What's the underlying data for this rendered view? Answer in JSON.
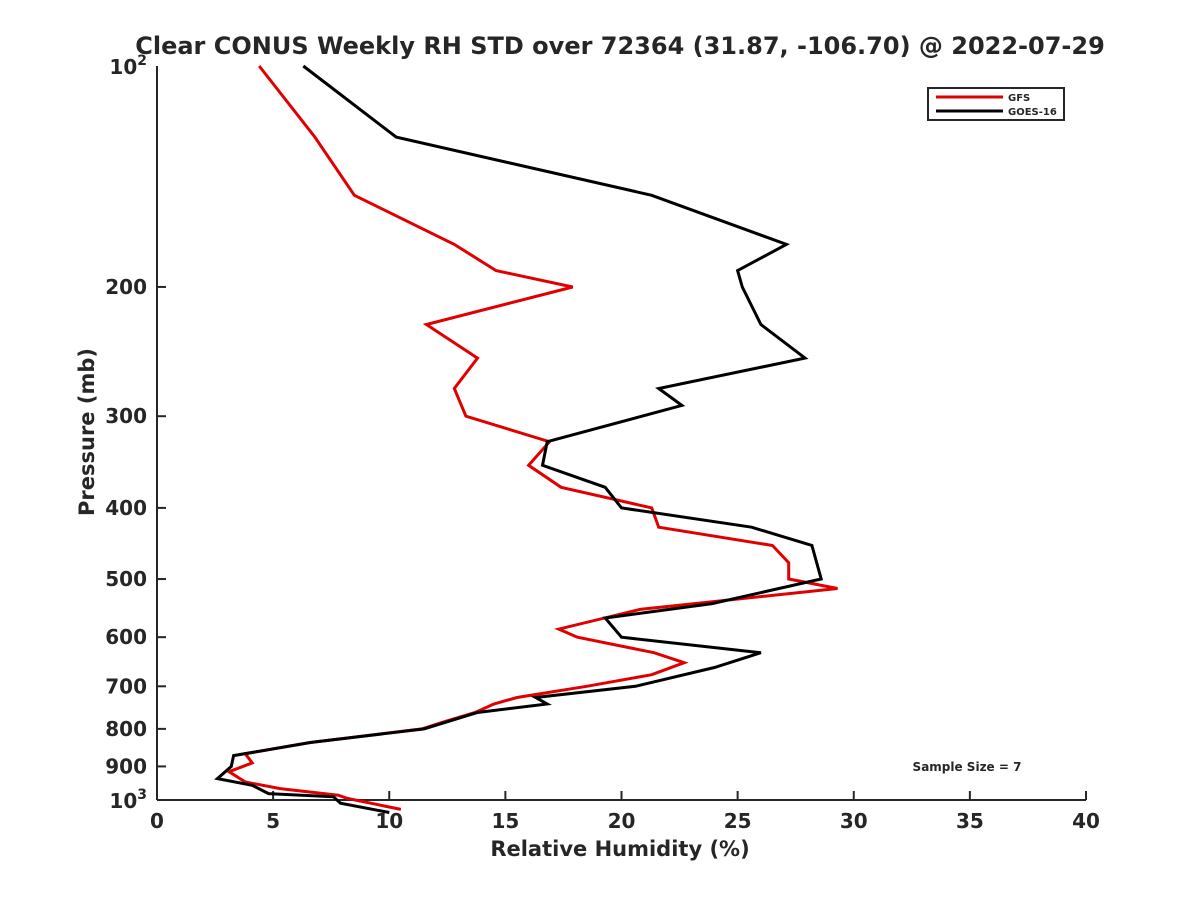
{
  "chart_data": {
    "type": "line",
    "title": "Clear CONUS Weekly RH STD over 72364 (31.87, -106.70) @ 2022-07-29",
    "xlabel": "Relative Humidity (%)",
    "ylabel": "Pressure (mb)",
    "xlim": [
      0,
      40
    ],
    "ylim": [
      100,
      1000
    ],
    "y_scale": "log",
    "y_reversed": true,
    "x_ticks": [
      0,
      5,
      10,
      15,
      20,
      25,
      30,
      35,
      40
    ],
    "x_tick_labels": [
      "0",
      "5",
      "10",
      "15",
      "20",
      "25",
      "30",
      "35",
      "40"
    ],
    "y_ticks": [
      200,
      300,
      400,
      500,
      600,
      700,
      800,
      900
    ],
    "y_tick_labels": [
      "200",
      "300",
      "400",
      "500",
      "600",
      "700",
      "800",
      "900"
    ],
    "y_end_labels": [
      {
        "value": 100,
        "base": "10",
        "exp": "2"
      },
      {
        "value": 1000,
        "base": "10",
        "exp": "3"
      }
    ],
    "grid": false,
    "legend_position": "top-right",
    "annotation": "Sample Size = 7",
    "series": [
      {
        "name": "GFS",
        "color": "#e00000",
        "points": [
          [
            4.4,
            100
          ],
          [
            6.8,
            125
          ],
          [
            8.5,
            150
          ],
          [
            12.8,
            175
          ],
          [
            14.6,
            190
          ],
          [
            17.9,
            200
          ],
          [
            11.6,
            225
          ],
          [
            13.8,
            250
          ],
          [
            12.8,
            275
          ],
          [
            13.3,
            300
          ],
          [
            16.9,
            325
          ],
          [
            16.0,
            350
          ],
          [
            17.4,
            375
          ],
          [
            21.3,
            400
          ],
          [
            21.6,
            425
          ],
          [
            26.5,
            450
          ],
          [
            27.2,
            475
          ],
          [
            27.2,
            500
          ],
          [
            29.3,
            515
          ],
          [
            20.8,
            550
          ],
          [
            17.3,
            585
          ],
          [
            18.1,
            600
          ],
          [
            21.4,
            630
          ],
          [
            22.7,
            650
          ],
          [
            21.3,
            675
          ],
          [
            18.5,
            700
          ],
          [
            15.5,
            725
          ],
          [
            14.5,
            740
          ],
          [
            13.7,
            760
          ],
          [
            12.5,
            780
          ],
          [
            11.4,
            800
          ],
          [
            6.6,
            835
          ],
          [
            3.8,
            865
          ],
          [
            4.1,
            890
          ],
          [
            3.1,
            915
          ],
          [
            3.8,
            945
          ],
          [
            5.3,
            965
          ],
          [
            7.8,
            985
          ],
          [
            8.2,
            995
          ],
          [
            10.5,
            1030
          ]
        ]
      },
      {
        "name": "GOES-16",
        "color": "#000000",
        "points": [
          [
            6.3,
            100
          ],
          [
            10.3,
            125
          ],
          [
            21.3,
            150
          ],
          [
            27.1,
            175
          ],
          [
            25.0,
            190
          ],
          [
            25.2,
            200
          ],
          [
            26.0,
            225
          ],
          [
            27.9,
            250
          ],
          [
            21.6,
            275
          ],
          [
            22.6,
            290
          ],
          [
            16.8,
            325
          ],
          [
            16.6,
            350
          ],
          [
            19.3,
            375
          ],
          [
            20.0,
            400
          ],
          [
            25.6,
            425
          ],
          [
            28.2,
            450
          ],
          [
            28.6,
            500
          ],
          [
            23.9,
            540
          ],
          [
            19.3,
            565
          ],
          [
            20.0,
            600
          ],
          [
            26.0,
            630
          ],
          [
            24.0,
            660
          ],
          [
            20.6,
            700
          ],
          [
            16.3,
            725
          ],
          [
            16.8,
            740
          ],
          [
            13.8,
            760
          ],
          [
            11.5,
            800
          ],
          [
            6.6,
            835
          ],
          [
            3.3,
            870
          ],
          [
            3.2,
            900
          ],
          [
            2.6,
            935
          ],
          [
            4.1,
            955
          ],
          [
            4.8,
            980
          ],
          [
            7.6,
            990
          ],
          [
            7.9,
            1010
          ],
          [
            10.0,
            1040
          ]
        ]
      }
    ]
  }
}
